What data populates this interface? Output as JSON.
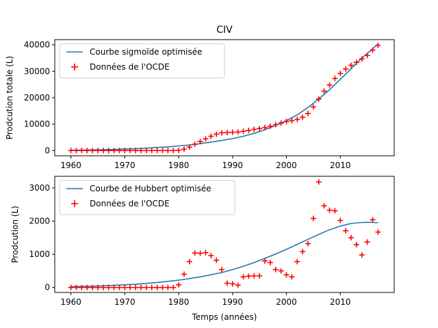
{
  "chart_data": [
    {
      "type": "line",
      "title": "CIV",
      "xlabel": "",
      "ylabel": "Prodcution totale (L)",
      "xlim": [
        1957,
        2020
      ],
      "ylim": [
        -2000,
        42000
      ],
      "xticks": [
        1960,
        1970,
        1980,
        1990,
        2000,
        2010
      ],
      "yticks": [
        0,
        10000,
        20000,
        30000,
        40000
      ],
      "grid": false,
      "legend_position": "top-left",
      "series": [
        {
          "name": "Courbe sigmoïde optimisée",
          "kind": "line",
          "color": "#1f77b4",
          "x": [
            1960,
            1962,
            1964,
            1966,
            1968,
            1970,
            1972,
            1974,
            1976,
            1978,
            1980,
            1982,
            1984,
            1986,
            1988,
            1990,
            1992,
            1994,
            1996,
            1998,
            2000,
            2002,
            2004,
            2006,
            2008,
            2010,
            2012,
            2014,
            2016,
            2017
          ],
          "y": [
            100,
            150,
            220,
            300,
            400,
            550,
            700,
            900,
            1150,
            1400,
            1750,
            2100,
            2600,
            3200,
            3800,
            4500,
            5400,
            6500,
            7900,
            9500,
            11300,
            13500,
            16300,
            19500,
            23000,
            27000,
            31000,
            35000,
            38500,
            40400
          ]
        },
        {
          "name": "Données de l'OCDE",
          "kind": "scatter",
          "marker": "+",
          "color": "#ff0000",
          "x": [
            1960,
            1961,
            1962,
            1963,
            1964,
            1965,
            1966,
            1967,
            1968,
            1969,
            1970,
            1971,
            1972,
            1973,
            1974,
            1975,
            1976,
            1977,
            1978,
            1979,
            1980,
            1981,
            1982,
            1983,
            1984,
            1985,
            1986,
            1987,
            1988,
            1989,
            1990,
            1991,
            1992,
            1993,
            1994,
            1995,
            1996,
            1997,
            1998,
            1999,
            2000,
            2001,
            2002,
            2003,
            2004,
            2005,
            2006,
            2007,
            2008,
            2009,
            2010,
            2011,
            2012,
            2013,
            2014,
            2015,
            2016,
            2017
          ],
          "y": [
            0,
            0,
            0,
            0,
            0,
            0,
            0,
            0,
            0,
            0,
            0,
            0,
            0,
            0,
            0,
            0,
            0,
            0,
            0,
            0,
            100,
            500,
            1300,
            2400,
            3400,
            4400,
            5400,
            6200,
            6700,
            6800,
            6900,
            7000,
            7300,
            7600,
            8000,
            8300,
            8700,
            9200,
            9800,
            10400,
            11000,
            11300,
            11800,
            12600,
            14000,
            16500,
            19500,
            22500,
            24800,
            27300,
            29200,
            30900,
            32300,
            33400,
            34700,
            36000,
            38000,
            39800
          ]
        }
      ]
    },
    {
      "type": "line",
      "title": "",
      "xlabel": "Temps (années)",
      "ylabel": "Prodcution (L)",
      "xlim": [
        1957,
        2020
      ],
      "ylim": [
        -150,
        3350
      ],
      "xticks": [
        1960,
        1970,
        1980,
        1990,
        2000,
        2010
      ],
      "yticks": [
        0,
        1000,
        2000,
        3000
      ],
      "grid": false,
      "legend_position": "top-left",
      "series": [
        {
          "name": "Courbe de Hubbert optimisée",
          "kind": "line",
          "color": "#1f77b4",
          "x": [
            1960,
            1964,
            1968,
            1972,
            1976,
            1980,
            1984,
            1988,
            1990,
            1992,
            1994,
            1996,
            1998,
            2000,
            2002,
            2004,
            2006,
            2008,
            2010,
            2012,
            2014,
            2015,
            2016,
            2017
          ],
          "y": [
            25,
            40,
            65,
            100,
            150,
            220,
            320,
            450,
            540,
            640,
            750,
            880,
            1010,
            1150,
            1300,
            1450,
            1600,
            1740,
            1850,
            1930,
            1960,
            1965,
            1960,
            1950
          ]
        },
        {
          "name": "Données de l'OCDE",
          "kind": "scatter",
          "marker": "+",
          "color": "#ff0000",
          "x": [
            1960,
            1961,
            1962,
            1963,
            1964,
            1965,
            1966,
            1967,
            1968,
            1969,
            1970,
            1971,
            1972,
            1973,
            1974,
            1975,
            1976,
            1977,
            1978,
            1979,
            1980,
            1981,
            1982,
            1983,
            1984,
            1985,
            1986,
            1987,
            1988,
            1989,
            1990,
            1991,
            1992,
            1993,
            1994,
            1995,
            1996,
            1997,
            1998,
            1999,
            2000,
            2001,
            2002,
            2003,
            2004,
            2005,
            2006,
            2007,
            2008,
            2009,
            2010,
            2011,
            2012,
            2013,
            2014,
            2015,
            2016,
            2017
          ],
          "y": [
            0,
            0,
            0,
            0,
            0,
            0,
            0,
            0,
            0,
            0,
            0,
            0,
            0,
            0,
            0,
            0,
            0,
            0,
            0,
            0,
            80,
            400,
            780,
            1040,
            1030,
            1050,
            960,
            820,
            540,
            130,
            110,
            70,
            320,
            340,
            350,
            350,
            800,
            750,
            540,
            500,
            380,
            320,
            780,
            1080,
            1320,
            2080,
            3180,
            2460,
            2330,
            2310,
            2020,
            1710,
            1500,
            1290,
            980,
            1370,
            2040,
            1670
          ]
        }
      ]
    }
  ]
}
